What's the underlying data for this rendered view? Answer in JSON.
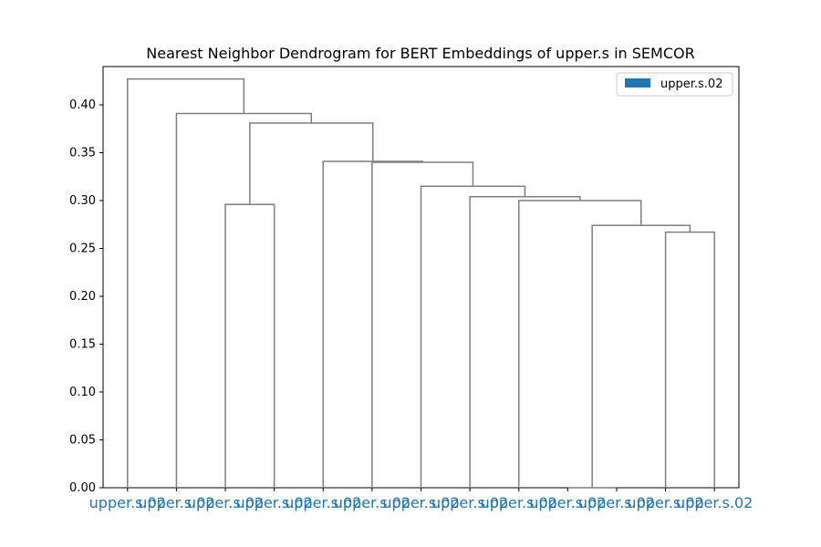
{
  "chart_data": {
    "type": "dendrogram",
    "title": "Nearest Neighbor Dendrogram for BERT Embeddings of upper.s in SEMCOR",
    "xlabel": "",
    "ylabel": "",
    "ylim": [
      0,
      0.44
    ],
    "yticks": [
      0.0,
      0.05,
      0.1,
      0.15,
      0.2,
      0.25,
      0.3,
      0.35,
      0.4
    ],
    "ytick_labels": [
      "0.00",
      "0.05",
      "0.10",
      "0.15",
      "0.20",
      "0.25",
      "0.30",
      "0.35",
      "0.40"
    ],
    "leaf_labels": [
      "upper.s.02",
      "upper.s.02",
      "upper.s.02",
      "upper.s.02",
      "upper.s.02",
      "upper.s.02",
      "upper.s.02",
      "upper.s.02",
      "upper.s.02",
      "upper.s.02",
      "upper.s.02",
      "upper.s.02",
      "upper.s.02"
    ],
    "merges": [
      {
        "left": "L9",
        "right": "L10",
        "height": 0.0
      },
      {
        "left": "L11",
        "right": "L12",
        "height": 0.267
      },
      {
        "left": "M0",
        "right": "M1",
        "height": 0.274
      },
      {
        "left": "L2",
        "right": "L3",
        "height": 0.296
      },
      {
        "left": "L8",
        "right": "M2",
        "height": 0.3
      },
      {
        "left": "L7",
        "right": "M4",
        "height": 0.304
      },
      {
        "left": "L6",
        "right": "M5",
        "height": 0.315
      },
      {
        "left": "L5",
        "right": "M6",
        "height": 0.34
      },
      {
        "left": "L4",
        "right": "M7",
        "height": 0.341
      },
      {
        "left": "M3",
        "right": "M8",
        "height": 0.381
      },
      {
        "left": "L1",
        "right": "M9",
        "height": 0.391
      },
      {
        "left": "L0",
        "right": "M10",
        "height": 0.427
      }
    ],
    "grid": false,
    "legend": {
      "position": "top-right",
      "entries": [
        {
          "label": "upper.s.02",
          "color": "#1f77b4"
        }
      ]
    },
    "colors": {
      "link": "#7f7f7f",
      "leaf_label": "#1f77b4",
      "legend_patch": "#1f77b4"
    }
  }
}
